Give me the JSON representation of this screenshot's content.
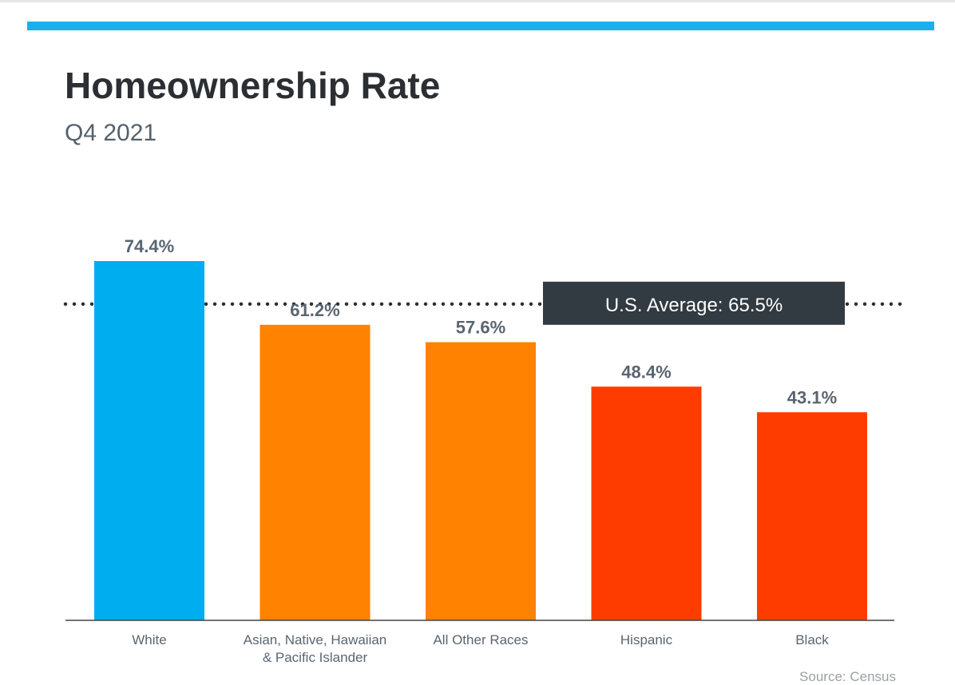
{
  "header": {
    "title": "Homeownership Rate",
    "subtitle": "Q4 2021"
  },
  "source_note": "Source: Census",
  "colors": {
    "accent": "#1ab0ef",
    "title": "#2b2f33",
    "value_label": "#5a6570",
    "average_box": "#323a42"
  },
  "chart_data": {
    "type": "bar",
    "categories": [
      "White",
      "Asian, Native, Hawaiian & Pacific Islander",
      "All Other Races",
      "Hispanic",
      "Black"
    ],
    "category_lines": [
      [
        "White"
      ],
      [
        "Asian, Native, Hawaiian",
        "& Pacific Islander"
      ],
      [
        "All Other Races"
      ],
      [
        "Hispanic"
      ],
      [
        "Black"
      ]
    ],
    "values": [
      74.4,
      61.2,
      57.6,
      48.4,
      43.1
    ],
    "data_labels": [
      "74.4%",
      "61.2%",
      "57.6%",
      "48.4%",
      "43.1%"
    ],
    "bar_colors": [
      "#00adee",
      "#ff8200",
      "#ff8200",
      "#ff3c00",
      "#ff3c00"
    ],
    "reference_line": {
      "value": 65.5,
      "label": "U.S. Average: 65.5%",
      "style": "dotted"
    },
    "ylim": [
      0,
      74.4
    ],
    "grid": false,
    "legend": "none"
  }
}
